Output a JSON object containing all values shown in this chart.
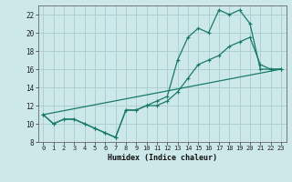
{
  "xlabel": "Humidex (Indice chaleur)",
  "bg_color": "#cce8e8",
  "grid_color": "#aacccc",
  "line_color": "#1a7a6a",
  "xlim": [
    -0.5,
    23.5
  ],
  "ylim": [
    8,
    23
  ],
  "xticks": [
    0,
    1,
    2,
    3,
    4,
    5,
    6,
    7,
    8,
    9,
    10,
    11,
    12,
    13,
    14,
    15,
    16,
    17,
    18,
    19,
    20,
    21,
    22,
    23
  ],
  "yticks": [
    8,
    10,
    12,
    14,
    16,
    18,
    20,
    22
  ],
  "line1_x": [
    0,
    1,
    2,
    3,
    4,
    5,
    6,
    7,
    8,
    9,
    10,
    11,
    12,
    13,
    14,
    15,
    16,
    17,
    18,
    19,
    20,
    21,
    22,
    23
  ],
  "line1_y": [
    11,
    10,
    10.5,
    10.5,
    10,
    9.5,
    9,
    8.5,
    11.5,
    11.5,
    12,
    12.5,
    13,
    17,
    19.5,
    20.5,
    20,
    22.5,
    22,
    22.5,
    21,
    16,
    16,
    16
  ],
  "line2_x": [
    0,
    1,
    2,
    3,
    4,
    5,
    6,
    7,
    8,
    9,
    10,
    11,
    12,
    13,
    14,
    15,
    16,
    17,
    18,
    19,
    20,
    21,
    22,
    23
  ],
  "line2_y": [
    11,
    10,
    10.5,
    10.5,
    10,
    9.5,
    9,
    8.5,
    11.5,
    11.5,
    12,
    12,
    12.5,
    13.5,
    15,
    16.5,
    17,
    17.5,
    18.5,
    19,
    19.5,
    16.5,
    16,
    16
  ],
  "line3_x": [
    0,
    23
  ],
  "line3_y": [
    11,
    16
  ]
}
